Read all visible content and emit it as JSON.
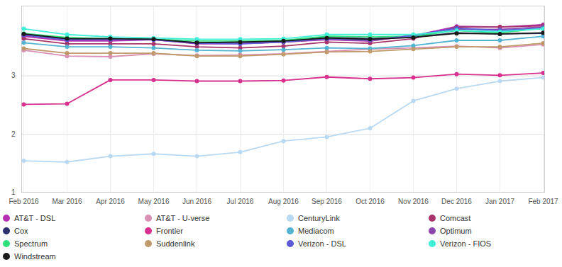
{
  "chart_data": {
    "type": "line",
    "x": [
      "Feb 2016",
      "Mar 2016",
      "Apr 2016",
      "May 2016",
      "Jun 2016",
      "Jul 2016",
      "Aug 2016",
      "Sep 2016",
      "Oct 2016",
      "Nov 2016",
      "Dec 2016",
      "Jan 2017",
      "Feb 2017"
    ],
    "ylim": [
      1,
      4.2
    ],
    "yticks": [
      1,
      2,
      3
    ],
    "grid": true,
    "legend": "bottom",
    "marker": "circle",
    "series": [
      {
        "name": "AT&T - DSL",
        "color": "#b62fb3",
        "values": [
          3.68,
          3.6,
          3.6,
          3.62,
          3.55,
          3.55,
          3.58,
          3.62,
          3.6,
          3.69,
          3.85,
          3.84,
          3.88
        ]
      },
      {
        "name": "AT&T - U-verse",
        "color": "#d98fb4",
        "values": [
          3.44,
          3.34,
          3.33,
          3.38,
          3.35,
          3.36,
          3.38,
          3.42,
          3.46,
          3.48,
          3.51,
          3.48,
          3.54
        ]
      },
      {
        "name": "CenturyLink",
        "color": "#b9d8f2",
        "values": [
          1.54,
          1.52,
          1.62,
          1.66,
          1.62,
          1.69,
          1.88,
          1.95,
          2.1,
          2.57,
          2.78,
          2.91,
          2.97
        ]
      },
      {
        "name": "Comcast",
        "color": "#a8346b",
        "values": [
          3.64,
          3.55,
          3.55,
          3.55,
          3.5,
          3.48,
          3.51,
          3.58,
          3.56,
          3.64,
          3.84,
          3.84,
          3.86
        ]
      },
      {
        "name": "Cox",
        "color": "#2b2f6f",
        "values": [
          3.71,
          3.63,
          3.64,
          3.63,
          3.57,
          3.58,
          3.59,
          3.66,
          3.64,
          3.67,
          3.74,
          3.72,
          3.73
        ]
      },
      {
        "name": "Frontier",
        "color": "#d8308f",
        "values": [
          2.51,
          2.52,
          2.93,
          2.93,
          2.91,
          2.91,
          2.92,
          2.98,
          2.95,
          2.97,
          3.03,
          3.01,
          3.05
        ]
      },
      {
        "name": "Mediacom",
        "color": "#53b3d3",
        "values": [
          3.57,
          3.5,
          3.5,
          3.48,
          3.44,
          3.43,
          3.45,
          3.48,
          3.47,
          3.52,
          3.61,
          3.61,
          3.68
        ]
      },
      {
        "name": "Optimum",
        "color": "#8e44ad",
        "values": [
          3.7,
          3.62,
          3.62,
          3.63,
          3.57,
          3.56,
          3.58,
          3.63,
          3.6,
          3.7,
          3.8,
          3.8,
          3.84
        ]
      },
      {
        "name": "Spectrum",
        "color": "#2fe07a",
        "values": [
          3.73,
          3.66,
          3.64,
          3.63,
          3.6,
          3.6,
          3.61,
          3.68,
          3.67,
          3.68,
          3.78,
          3.74,
          3.82
        ]
      },
      {
        "name": "Suddenlink",
        "color": "#c19a6b",
        "values": [
          3.47,
          3.39,
          3.39,
          3.39,
          3.34,
          3.34,
          3.37,
          3.41,
          3.42,
          3.46,
          3.5,
          3.5,
          3.56
        ]
      },
      {
        "name": "Verizon - DSL",
        "color": "#5b5bd6",
        "values": [
          3.7,
          3.62,
          3.63,
          3.62,
          3.56,
          3.55,
          3.58,
          3.64,
          3.62,
          3.69,
          3.82,
          3.78,
          3.82
        ]
      },
      {
        "name": "Verizon - FIOS",
        "color": "#3ef0d8",
        "values": [
          3.81,
          3.71,
          3.67,
          3.65,
          3.63,
          3.63,
          3.64,
          3.71,
          3.71,
          3.71,
          3.78,
          3.76,
          3.81
        ]
      },
      {
        "name": "Windstream",
        "color": "#1a1a1a",
        "values": [
          3.72,
          3.64,
          3.64,
          3.63,
          3.57,
          3.58,
          3.6,
          3.65,
          3.63,
          3.66,
          3.73,
          3.72,
          3.74
        ]
      }
    ]
  }
}
